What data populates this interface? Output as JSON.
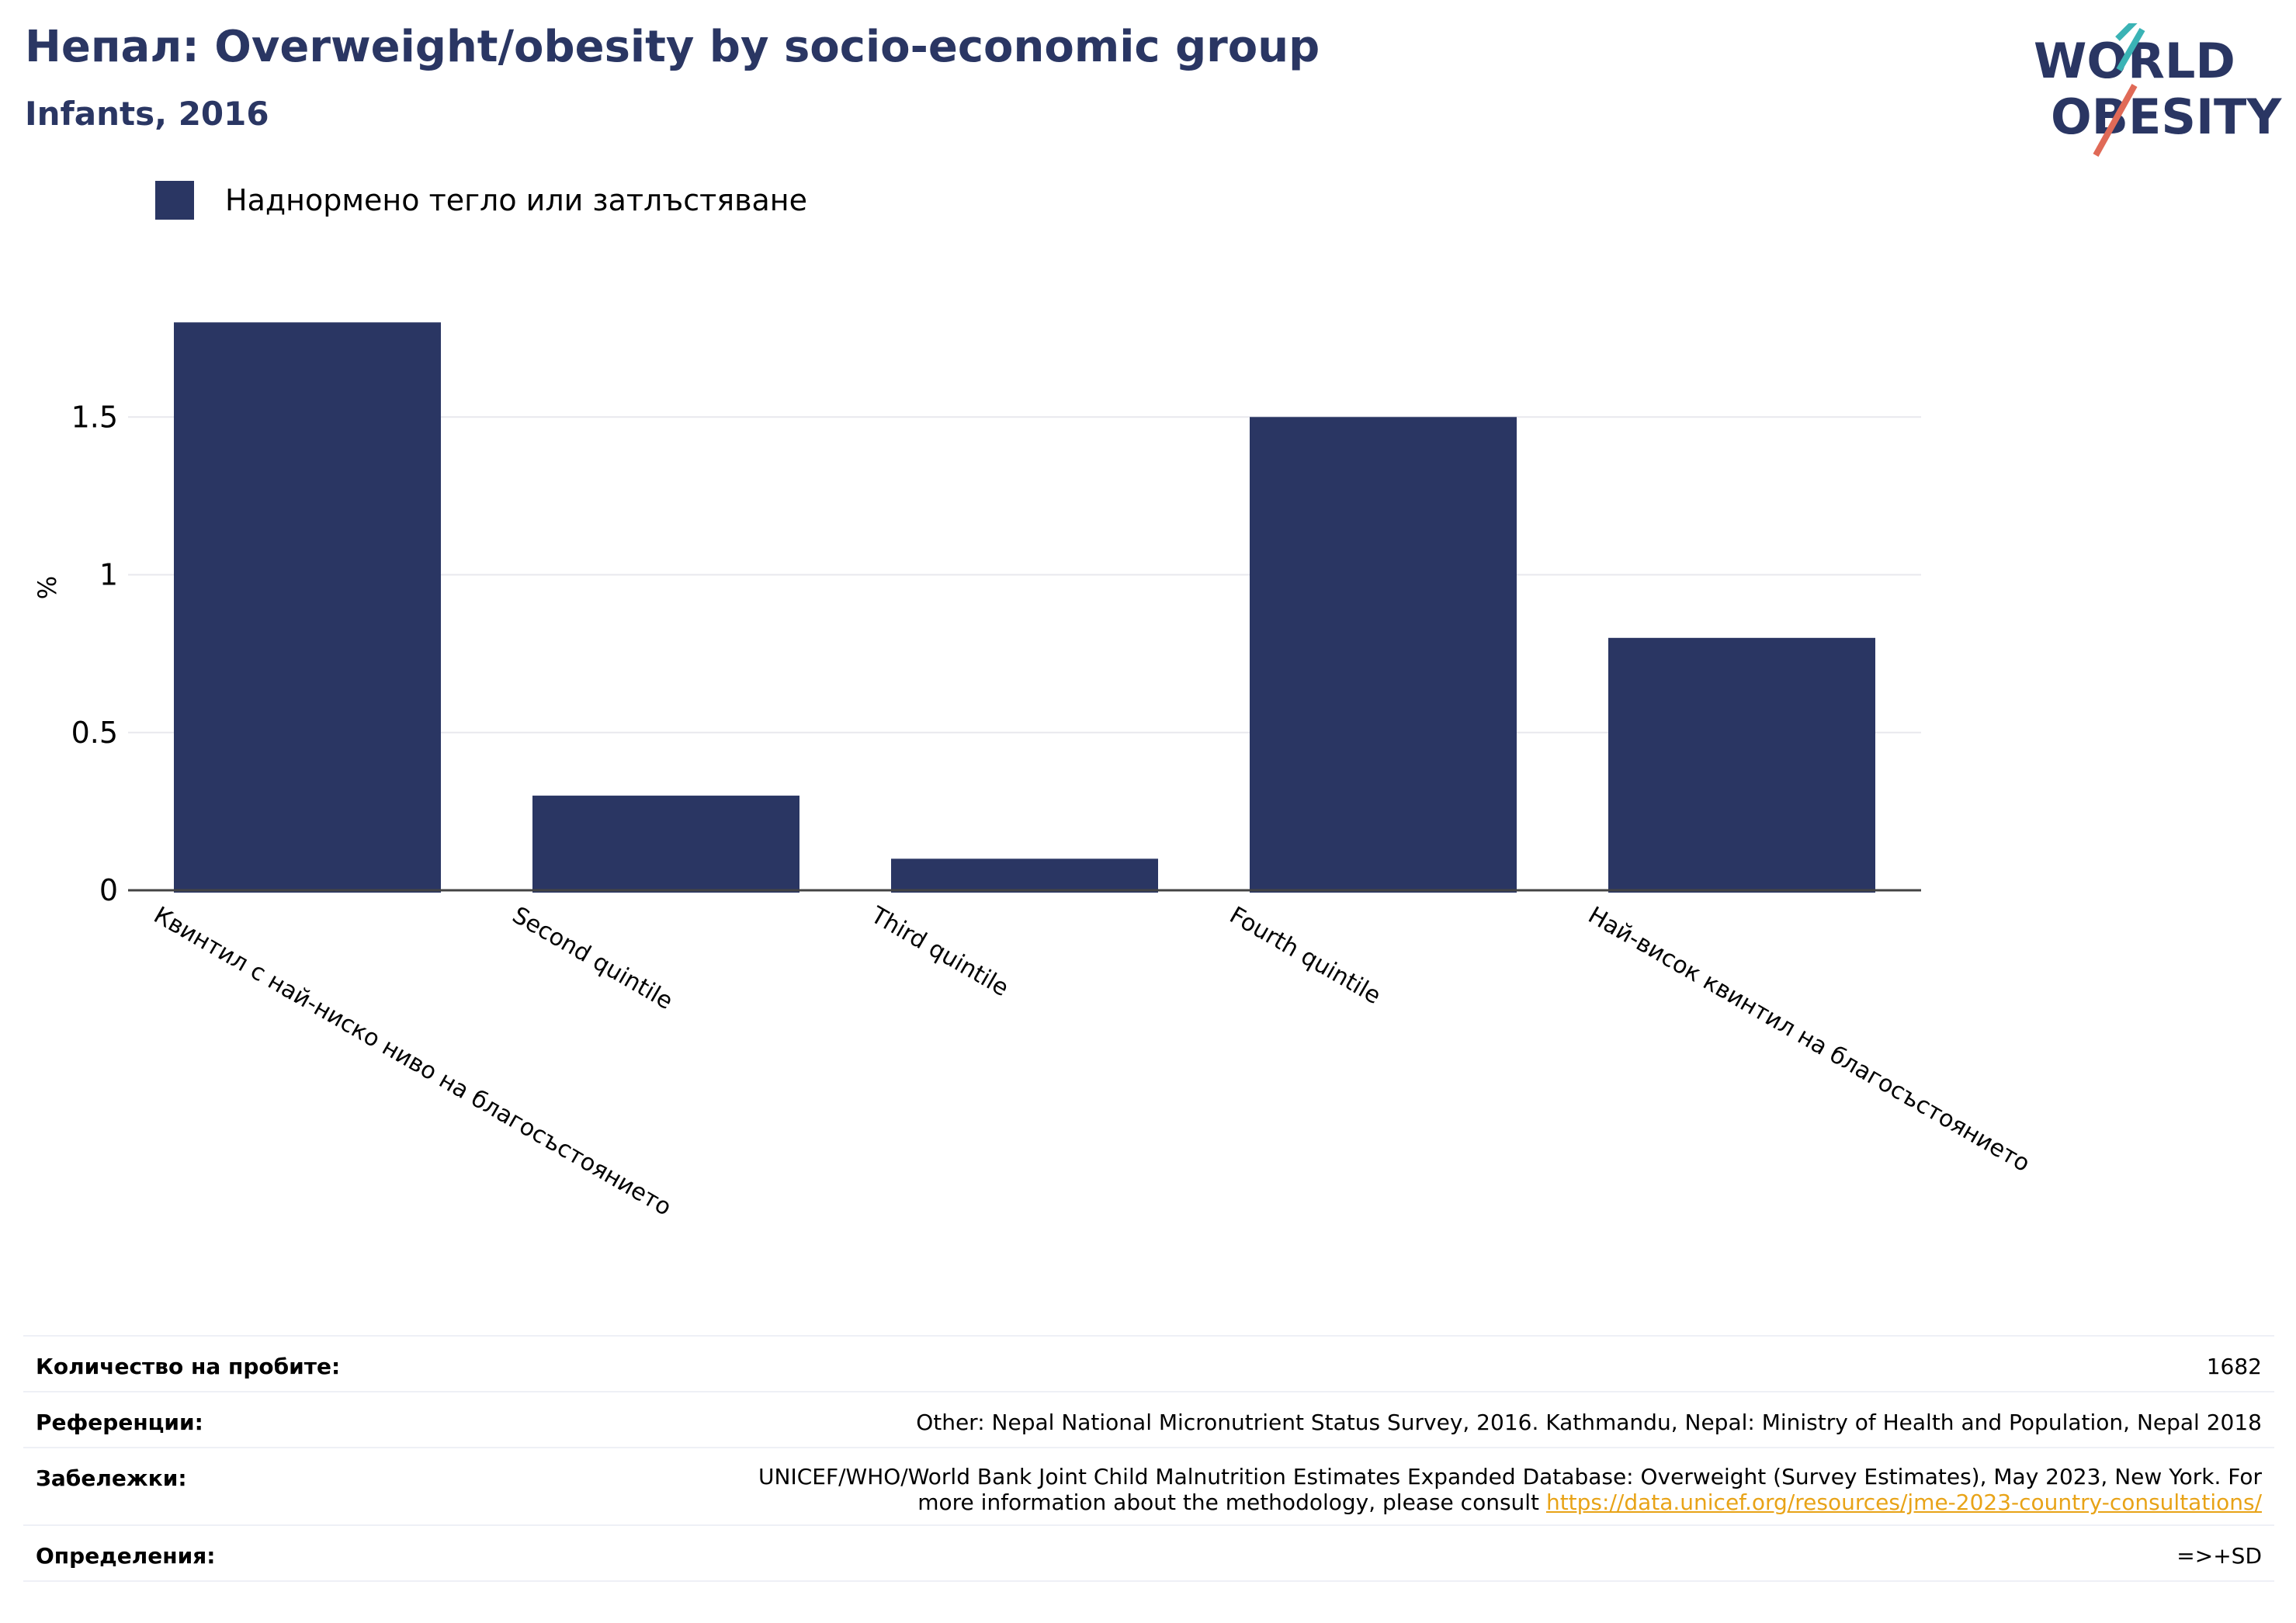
{
  "header": {
    "title": "Непал: Overweight/obesity by socio-economic group",
    "subtitle": "Infants, 2016"
  },
  "logo": {
    "line1": "WORLD",
    "line2": "OBESITY"
  },
  "colors": {
    "bar": "#2a3663",
    "title": "#2a3663",
    "link": "#e8a317",
    "grid": "#e8e8ee",
    "logo_teal": "#3ab3b5",
    "logo_coral": "#e06a57"
  },
  "chart_data": {
    "type": "bar",
    "title": "Непал: Overweight/obesity by socio-economic group",
    "subtitle": "Infants, 2016",
    "categories": [
      "Квинтил с най-ниско ниво на благосъстоянието",
      "Second quintile",
      "Third quintile",
      "Fourth quintile",
      "Най-висок квинтил на благосъстоянието"
    ],
    "series": [
      {
        "name": "Наднормено тегло или затлъстяване",
        "values": [
          1.8,
          0.3,
          0.1,
          1.5,
          0.8
        ]
      }
    ],
    "ylabel": "%",
    "xlabel": "",
    "ylim": [
      0,
      1.85
    ],
    "yticks": [
      0,
      0.5,
      1,
      1.5
    ],
    "ytick_labels": [
      "0",
      "0.5",
      "1",
      "1.5"
    ],
    "grid": true,
    "legend_position": "top-left"
  },
  "info": {
    "sample_label": "Количество на пробите:",
    "sample_value": "1682",
    "references_label": "Референции:",
    "references_value": "Other: Nepal National Micronutrient Status Survey, 2016. Kathmandu, Nepal: Ministry of Health and Population, Nepal 2018",
    "notes_label": "Забележки:",
    "notes_line1": "UNICEF/WHO/World Bank Joint Child Malnutrition Estimates Expanded Database: Overweight (Survey Estimates), May 2023, New York. For",
    "notes_line2": "more information about the methodology, please consult",
    "notes_link": "https://data.unicef.org/resources/jme-2023-country-consultations/",
    "definitions_label": "Определения:",
    "definitions_value": "=>+SD"
  }
}
